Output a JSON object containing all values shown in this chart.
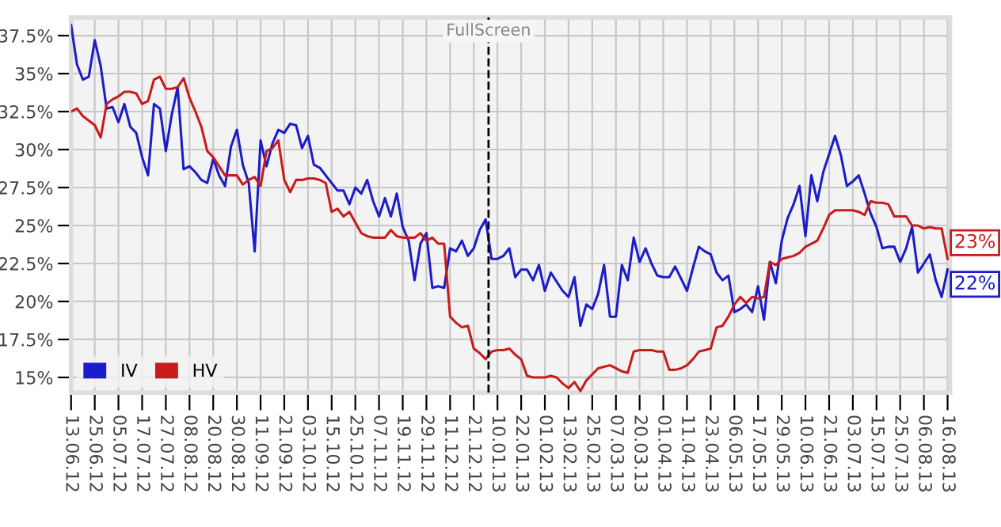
{
  "chart_data": {
    "type": "line",
    "categories": [
      "13.06.12",
      null,
      null,
      null,
      "25.06.12",
      null,
      null,
      null,
      "05.07.12",
      null,
      null,
      null,
      "17.07.12",
      null,
      null,
      null,
      "27.07.12",
      null,
      null,
      null,
      "08.08.12",
      null,
      null,
      null,
      "20.08.12",
      null,
      null,
      null,
      "30.08.12",
      null,
      null,
      null,
      "11.09.12",
      null,
      null,
      null,
      "21.09.12",
      null,
      null,
      null,
      "03.10.12",
      null,
      null,
      null,
      "15.10.12",
      null,
      null,
      null,
      "25.10.12",
      null,
      null,
      null,
      "07.11.12",
      null,
      null,
      null,
      "19.11.12",
      null,
      null,
      null,
      "29.11.12",
      null,
      null,
      null,
      "11.12.12",
      null,
      null,
      null,
      "21.12.12",
      null,
      null,
      null,
      "10.01.13",
      null,
      null,
      null,
      "22.01.13",
      null,
      null,
      null,
      "01.02.13",
      null,
      null,
      null,
      "13.02.13",
      null,
      null,
      null,
      "25.02.13",
      null,
      null,
      null,
      "07.03.13",
      null,
      null,
      null,
      "20.03.13",
      null,
      null,
      null,
      "01.04.13",
      null,
      null,
      null,
      "11.04.13",
      null,
      null,
      null,
      "23.04.13",
      null,
      null,
      null,
      "06.05.13",
      null,
      null,
      null,
      "17.05.13",
      null,
      null,
      null,
      "29.05.13",
      null,
      null,
      null,
      "10.06.13",
      null,
      null,
      null,
      "21.06.13",
      null,
      null,
      null,
      "03.07.13",
      null,
      null,
      null,
      "15.07.13",
      null,
      null,
      null,
      "25.07.13",
      null,
      null,
      null,
      "06.08.13",
      null,
      null,
      null,
      "16.08.13"
    ],
    "series": [
      {
        "name": "IV",
        "color": "#1c1cc8",
        "values": [
          38.2,
          35.6,
          34.6,
          34.8,
          37.2,
          35.5,
          32.7,
          32.8,
          31.8,
          33.0,
          31.5,
          31.1,
          29.5,
          28.3,
          33.0,
          32.7,
          29.9,
          32.3,
          34.1,
          28.7,
          28.9,
          28.5,
          28.0,
          27.8,
          29.4,
          28.3,
          27.6,
          30.2,
          31.3,
          29.0,
          27.8,
          23.3,
          30.6,
          28.9,
          30.4,
          31.3,
          31.1,
          31.7,
          31.6,
          30.1,
          30.9,
          29.0,
          28.8,
          28.3,
          27.8,
          27.3,
          27.3,
          26.4,
          27.5,
          27.1,
          28.0,
          26.6,
          25.6,
          26.8,
          25.6,
          27.1,
          24.9,
          24.0,
          21.4,
          23.8,
          24.5,
          20.9,
          21.0,
          20.9,
          23.5,
          23.3,
          24.0,
          23.0,
          23.5,
          24.7,
          25.4,
          22.8,
          22.8,
          23.0,
          23.5,
          21.6,
          22.1,
          22.1,
          21.4,
          22.4,
          20.7,
          21.9,
          21.3,
          20.7,
          20.3,
          21.6,
          18.4,
          19.8,
          19.5,
          20.5,
          22.4,
          19.0,
          19.0,
          22.4,
          21.4,
          24.2,
          22.6,
          23.5,
          22.5,
          21.7,
          21.6,
          21.6,
          22.3,
          21.5,
          20.7,
          22.2,
          23.6,
          23.3,
          23.1,
          21.9,
          21.4,
          21.7,
          19.3,
          19.5,
          19.8,
          19.3,
          21.0,
          18.8,
          22.6,
          21.2,
          24.0,
          25.5,
          26.4,
          27.6,
          24.3,
          28.3,
          26.6,
          28.5,
          29.7,
          30.9,
          29.6,
          27.6,
          27.9,
          28.3,
          27.1,
          25.8,
          24.9,
          23.5,
          23.6,
          23.6,
          22.6,
          23.5,
          24.9,
          21.9,
          22.5,
          23.1,
          21.4,
          20.3,
          22.1
        ]
      },
      {
        "name": "HV",
        "color": "#c81c1c",
        "values": [
          32.5,
          32.7,
          32.2,
          31.9,
          31.6,
          30.8,
          33.0,
          33.3,
          33.5,
          33.8,
          33.8,
          33.7,
          33.0,
          33.2,
          34.6,
          34.8,
          34.0,
          34.0,
          34.1,
          34.7,
          33.4,
          32.5,
          31.5,
          29.9,
          29.5,
          28.9,
          28.3,
          28.3,
          28.3,
          27.7,
          28.0,
          28.2,
          27.6,
          29.9,
          30.1,
          30.6,
          28.0,
          27.2,
          28.0,
          28.0,
          28.1,
          28.1,
          28.0,
          27.8,
          25.9,
          26.1,
          25.6,
          25.9,
          25.2,
          24.5,
          24.3,
          24.2,
          24.2,
          24.2,
          24.7,
          24.3,
          24.2,
          24.2,
          24.2,
          24.5,
          24.0,
          24.2,
          23.8,
          23.8,
          19.0,
          18.6,
          18.3,
          18.4,
          16.9,
          16.6,
          16.2,
          16.7,
          16.8,
          16.8,
          16.9,
          16.5,
          16.2,
          15.1,
          15.0,
          15.0,
          15.0,
          15.1,
          15.0,
          14.6,
          14.3,
          14.7,
          14.1,
          14.8,
          15.2,
          15.6,
          15.7,
          15.8,
          15.6,
          15.4,
          15.3,
          16.7,
          16.8,
          16.8,
          16.8,
          16.7,
          16.7,
          15.5,
          15.5,
          15.6,
          15.8,
          16.2,
          16.7,
          16.8,
          16.9,
          18.3,
          18.4,
          19.0,
          19.8,
          20.3,
          19.9,
          20.3,
          20.2,
          20.3,
          22.6,
          22.4,
          22.8,
          22.9,
          23.0,
          23.2,
          23.6,
          23.8,
          24.0,
          24.8,
          25.7,
          26.0,
          26.0,
          26.0,
          26.0,
          25.9,
          25.7,
          26.6,
          26.5,
          26.5,
          26.4,
          25.6,
          25.6,
          25.6,
          25.0,
          25.0,
          24.8,
          24.9,
          24.8,
          24.8,
          22.8
        ]
      }
    ],
    "ylim": [
      14,
      38.7
    ],
    "yticks": [
      {
        "value": 15,
        "label": "15%"
      },
      {
        "value": 17.5,
        "label": "17.5%"
      },
      {
        "value": 20,
        "label": "20%"
      },
      {
        "value": 22.5,
        "label": "22.5%"
      },
      {
        "value": 25,
        "label": "25%"
      },
      {
        "value": 27.5,
        "label": "27.5%"
      },
      {
        "value": 30,
        "label": "30%"
      },
      {
        "value": 32.5,
        "label": "32.5%"
      },
      {
        "value": 35,
        "label": "35%"
      },
      {
        "value": 37.5,
        "label": "37.5%"
      }
    ],
    "annotations": [
      "FullScreen",
      {
        "text": "23%",
        "x": "16.08.13",
        "y": 23
      },
      {
        "text": "22%",
        "x": "16.08.13",
        "y": 22
      }
    ],
    "grid": true,
    "legend": "bottom left",
    "marker": "none",
    "line_style": "solid"
  }
}
